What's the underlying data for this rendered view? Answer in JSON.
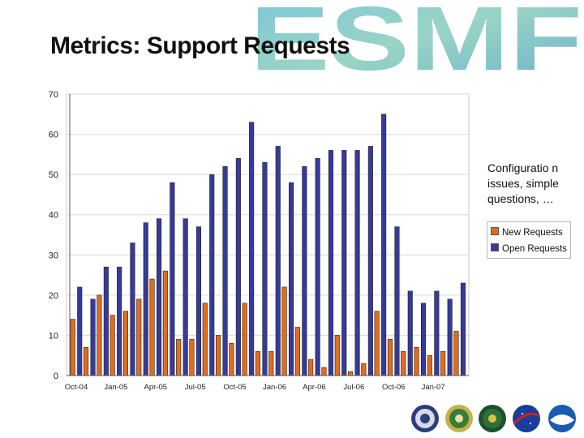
{
  "slide": {
    "title": "Metrics: Support Requests",
    "annotation": "Configuratio n issues, simple questions, …",
    "logo_text": "ESMF"
  },
  "colors": {
    "new_requests": "#e36c1c",
    "open_requests": "#363a9a",
    "gridline": "#d9d9d9",
    "logo": "#4aa6c0"
  },
  "logos": [
    "dod-seal-icon",
    "nsf-seal-icon",
    "doe-seal-icon",
    "nasa-logo-icon",
    "noaa-logo-icon"
  ],
  "chart_data": {
    "type": "bar",
    "title": "",
    "xlabel": "",
    "ylabel": "",
    "ylim": [
      0,
      70
    ],
    "yticks": [
      0,
      10,
      20,
      30,
      40,
      50,
      60,
      70
    ],
    "grid": true,
    "legend_position": "right",
    "categories": [
      "Oct-04",
      "Nov-04",
      "Dec-04",
      "Jan-05",
      "Feb-05",
      "Mar-05",
      "Apr-05",
      "May-05",
      "Jun-05",
      "Jul-05",
      "Aug-05",
      "Sep-05",
      "Oct-05",
      "Nov-05",
      "Dec-05",
      "Jan-06",
      "Feb-06",
      "Mar-06",
      "Apr-06",
      "May-06",
      "Jun-06",
      "Jul-06",
      "Aug-06",
      "Sep-06",
      "Oct-06",
      "Nov-06",
      "Dec-06",
      "Jan-07",
      "Feb-07",
      "Mar-07"
    ],
    "tick_labels": [
      "Oct-04",
      "",
      "",
      "Jan-05",
      "",
      "",
      "Apr-05",
      "",
      "",
      "Jul-05",
      "",
      "",
      "Oct-05",
      "",
      "",
      "Jan-06",
      "",
      "",
      "Apr-06",
      "",
      "",
      "Jul-06",
      "",
      "",
      "Oct-06",
      "",
      "",
      "Jan-07",
      "",
      ""
    ],
    "series": [
      {
        "name": "New Requests",
        "values": [
          14,
          7,
          20,
          15,
          16,
          19,
          24,
          26,
          9,
          9,
          18,
          10,
          8,
          18,
          6,
          6,
          22,
          12,
          4,
          2,
          10,
          1,
          3,
          16,
          9,
          6,
          7,
          5,
          6,
          11
        ]
      },
      {
        "name": "Open Requests",
        "values": [
          22,
          19,
          27,
          27,
          33,
          38,
          39,
          48,
          39,
          37,
          50,
          52,
          54,
          63,
          53,
          57,
          48,
          52,
          54,
          56,
          56,
          56,
          57,
          65,
          37,
          21,
          18,
          21,
          19,
          23
        ]
      }
    ]
  }
}
